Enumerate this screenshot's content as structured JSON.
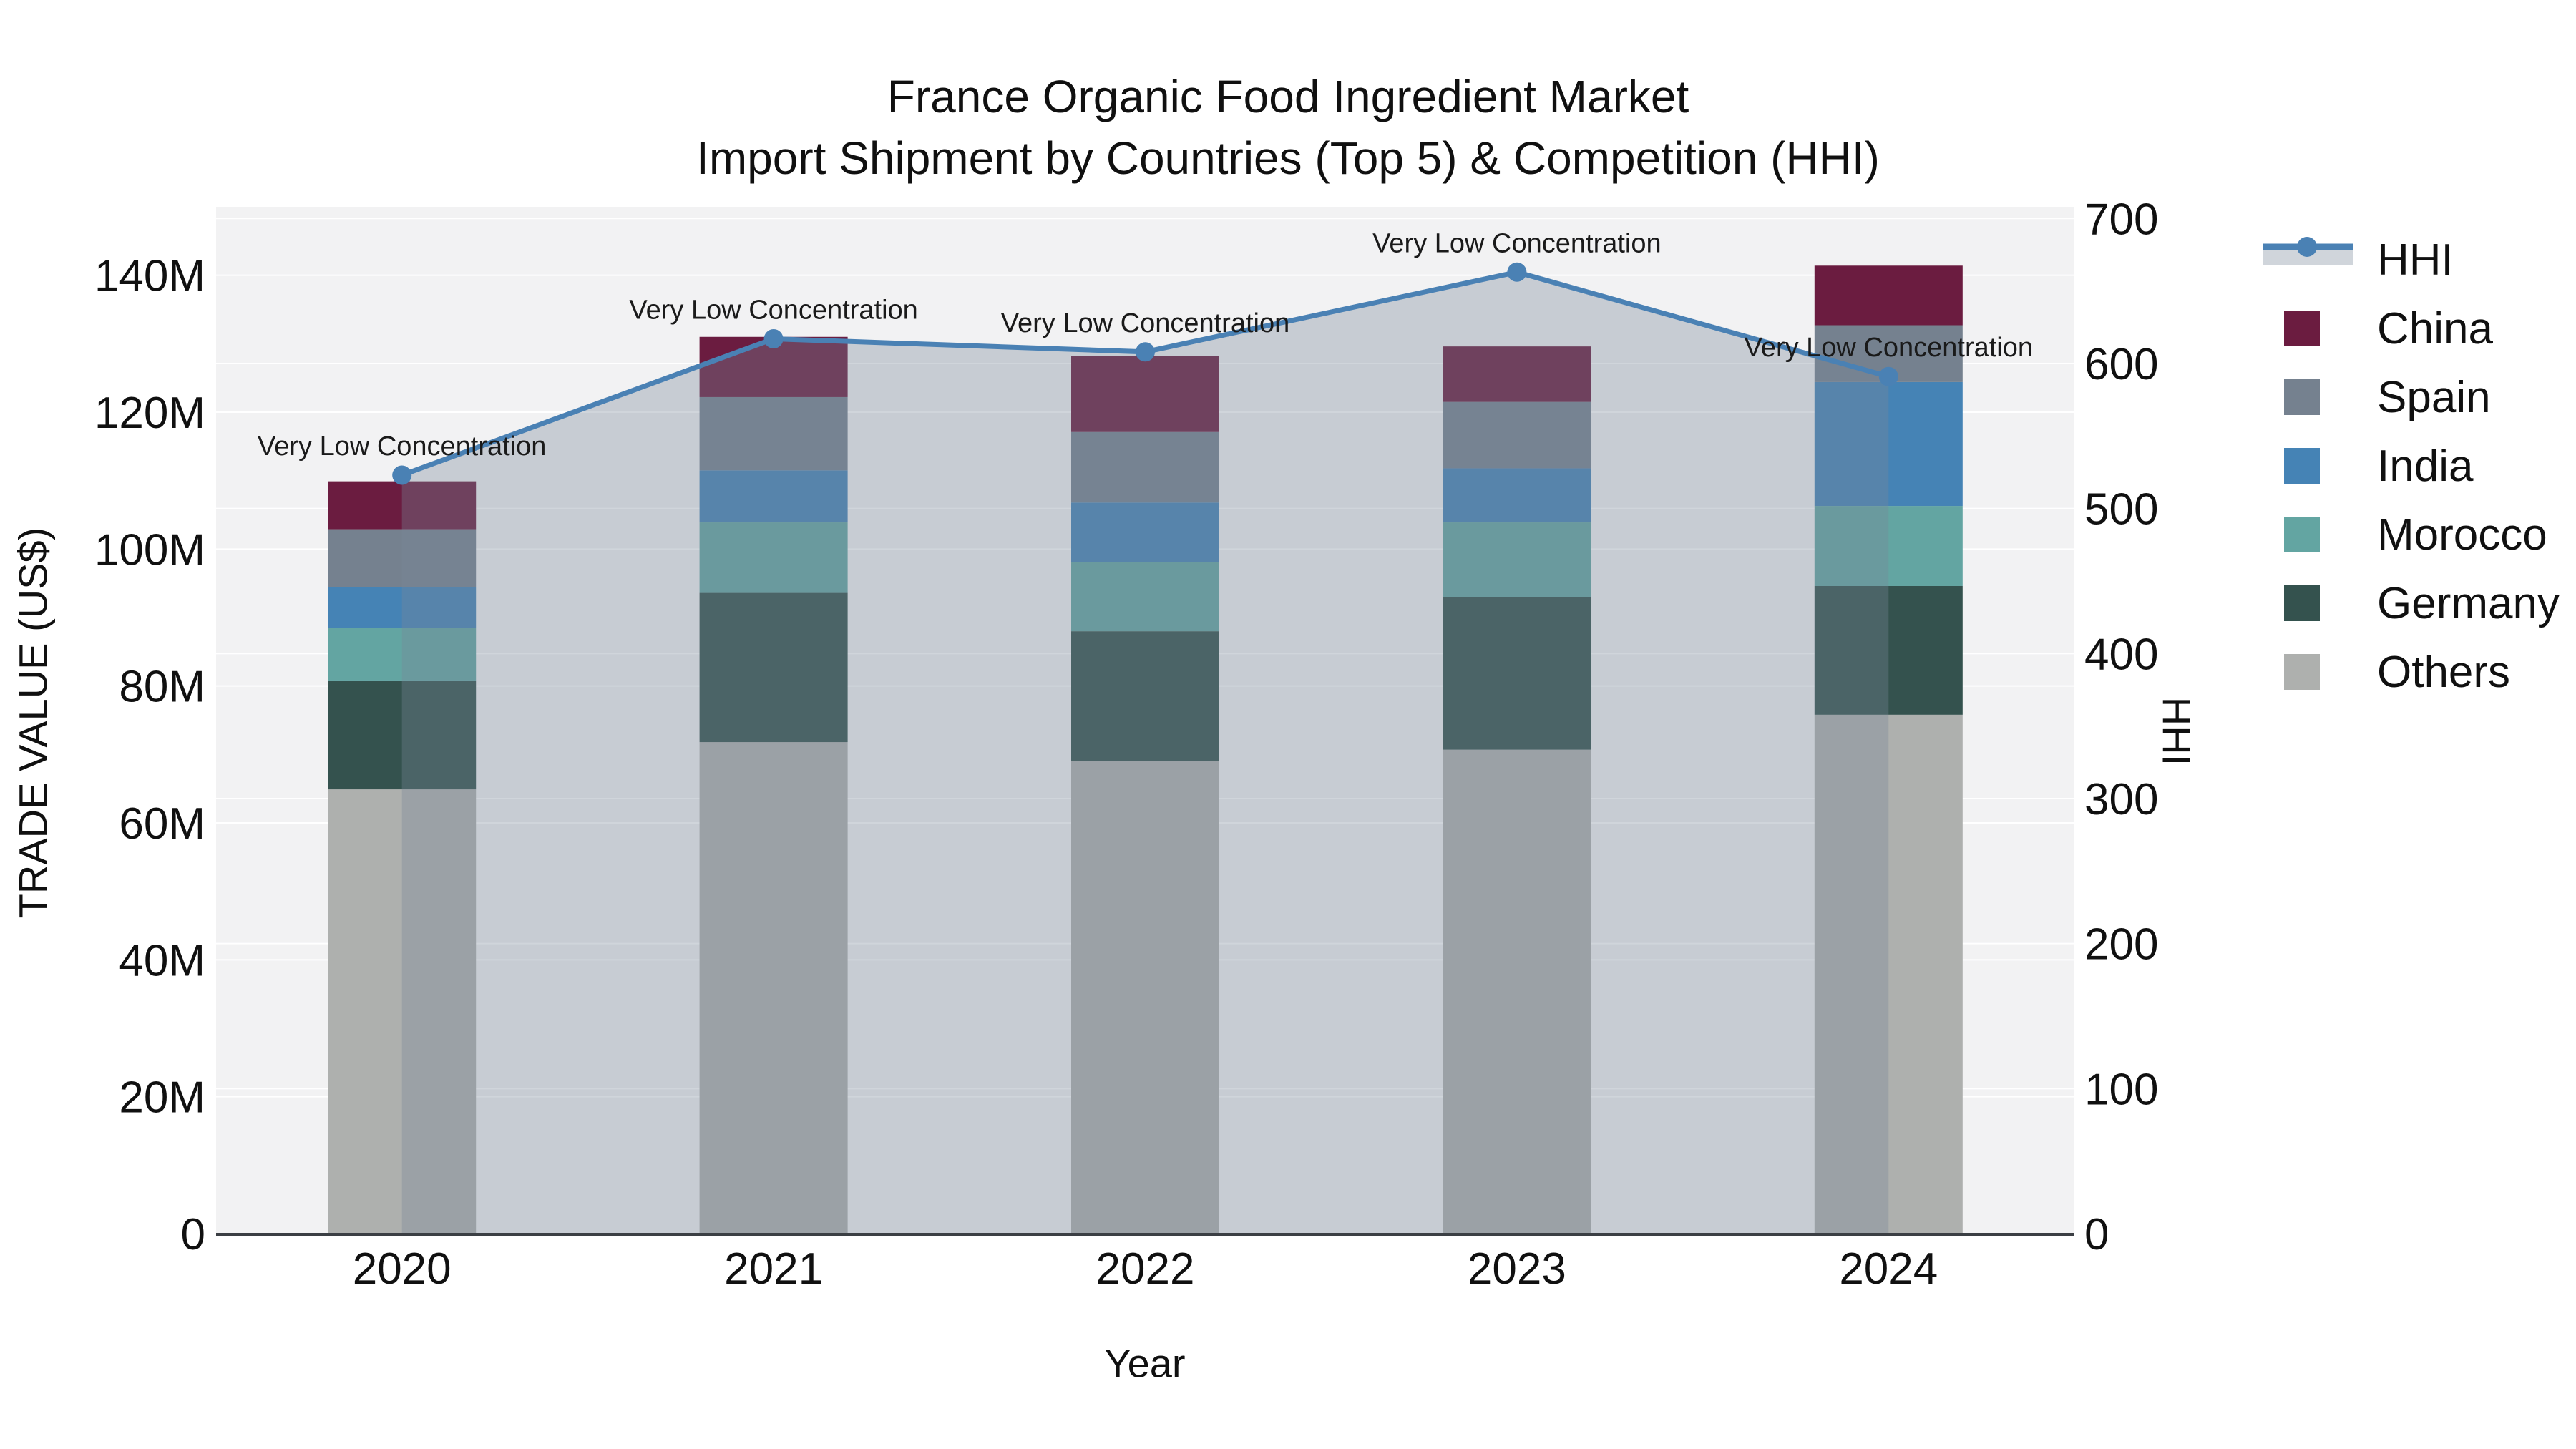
{
  "title": {
    "line1": "France Organic Food Ingredient Market",
    "line2": "Import Shipment by Countries (Top 5) & Competition (HHI)"
  },
  "axes": {
    "x": {
      "title": "Year",
      "categories": [
        "2020",
        "2021",
        "2022",
        "2023",
        "2024"
      ]
    },
    "y_left": {
      "title": "TRADE VALUE (US$)",
      "tick_labels": [
        "0",
        "20M",
        "40M",
        "60M",
        "80M",
        "100M",
        "120M",
        "140M"
      ],
      "tick_values_m": [
        0,
        20,
        40,
        60,
        80,
        100,
        120,
        140
      ],
      "range_max_m": 150
    },
    "y_right": {
      "title": "HHI",
      "tick_labels": [
        "0",
        "100",
        "200",
        "300",
        "400",
        "500",
        "600",
        "700"
      ],
      "tick_values": [
        0,
        100,
        200,
        300,
        400,
        500,
        600,
        700
      ],
      "range_max": 708
    }
  },
  "legend": {
    "items": [
      {
        "label": "HHI",
        "type": "line",
        "color": "#4A81B4"
      },
      {
        "label": "China",
        "type": "square",
        "color": "#6B1C40"
      },
      {
        "label": "Spain",
        "type": "square",
        "color": "#75818F"
      },
      {
        "label": "India",
        "type": "square",
        "color": "#4583B5"
      },
      {
        "label": "Morocco",
        "type": "square",
        "color": "#63A5A2"
      },
      {
        "label": "Germany",
        "type": "square",
        "color": "#34524E"
      },
      {
        "label": "Others",
        "type": "square",
        "color": "#AEB0AE"
      }
    ]
  },
  "chart_data": {
    "type": "bar",
    "subtype": "stacked-bars-with-line-overlay",
    "categories": [
      "2020",
      "2021",
      "2022",
      "2023",
      "2024"
    ],
    "unit": "million US$",
    "series": [
      {
        "name": "Others",
        "color": "#AEB0AE",
        "values": [
          64.9,
          71.8,
          69.0,
          70.7,
          75.8
        ]
      },
      {
        "name": "Germany",
        "color": "#34524E",
        "values": [
          15.8,
          21.8,
          19.0,
          22.3,
          18.8
        ]
      },
      {
        "name": "Morocco",
        "color": "#63A5A2",
        "values": [
          7.8,
          10.3,
          10.1,
          10.9,
          11.7
        ]
      },
      {
        "name": "India",
        "color": "#4583B5",
        "values": [
          5.9,
          7.6,
          8.7,
          7.9,
          18.1
        ]
      },
      {
        "name": "Spain",
        "color": "#75818F",
        "values": [
          8.5,
          10.7,
          10.3,
          9.7,
          8.3
        ]
      },
      {
        "name": "China",
        "color": "#6B1C40",
        "values": [
          7.0,
          8.8,
          11.1,
          8.1,
          8.7
        ]
      }
    ],
    "totals_m": [
      109.9,
      131.0,
      128.2,
      129.6,
      141.4
    ],
    "line_series": {
      "name": "HHI",
      "color": "#4A81B4",
      "fill_color": "rgba(119,136,153,0.35)",
      "values": [
        523,
        617,
        608,
        663,
        591
      ],
      "axis": "right"
    },
    "annotations": [
      {
        "x": "2020",
        "text": "Very Low Concentration"
      },
      {
        "x": "2021",
        "text": "Very Low Concentration"
      },
      {
        "x": "2022",
        "text": "Very Low Concentration"
      },
      {
        "x": "2023",
        "text": "Very Low Concentration"
      },
      {
        "x": "2024",
        "text": "Very Low Concentration"
      }
    ],
    "layout_hints": {
      "plot_bg": "#F2F2F3",
      "grid_color": "rgba(255,255,255,0.95)",
      "axis_line_color": "#3B3F44",
      "legend_position": "right",
      "left_axis_range": [
        0,
        150000000
      ],
      "right_axis_range": [
        0,
        708
      ]
    }
  }
}
